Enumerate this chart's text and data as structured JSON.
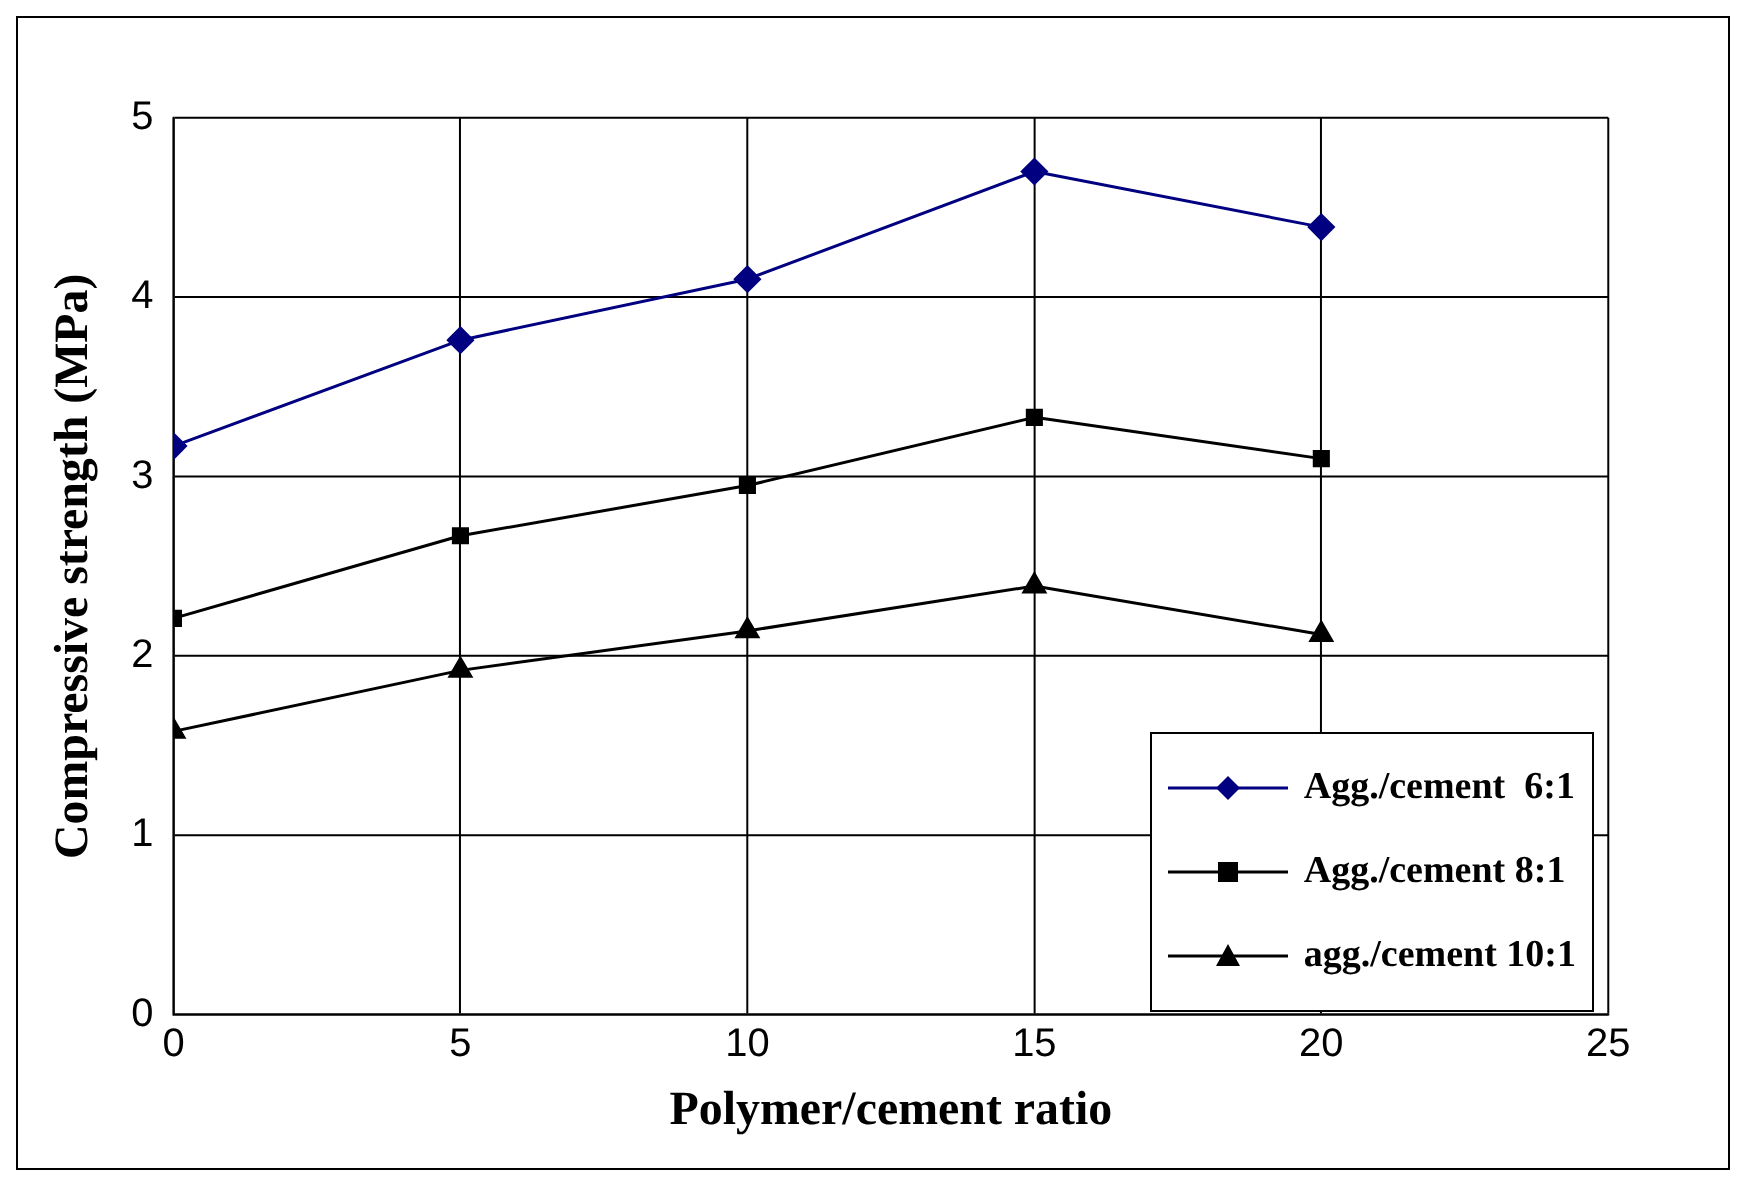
{
  "chart_data": {
    "type": "line",
    "xlabel": "Polymer/cement ratio",
    "ylabel": "Compressive strength (MPa)",
    "x": [
      0,
      5,
      10,
      15,
      20
    ],
    "series": [
      {
        "name": "Agg./cement  6:1",
        "color": "#000080",
        "marker": "diamond",
        "values": [
          3.17,
          3.76,
          4.1,
          4.7,
          4.39
        ]
      },
      {
        "name": "Agg./cement 8:1",
        "color": "#000000",
        "marker": "square",
        "values": [
          2.21,
          2.67,
          2.95,
          3.33,
          3.1
        ]
      },
      {
        "name": "agg./cement 10:1",
        "color": "#000000",
        "marker": "triangle",
        "values": [
          1.58,
          1.92,
          2.14,
          2.39,
          2.12
        ]
      }
    ],
    "xlim": [
      0,
      25
    ],
    "xticks": [
      0,
      5,
      10,
      15,
      20,
      25
    ],
    "ylim": [
      0,
      5
    ],
    "yticks": [
      0,
      1,
      2,
      3,
      4,
      5
    ],
    "grid": true,
    "legend": "bottom right",
    "line_style": "solid"
  }
}
